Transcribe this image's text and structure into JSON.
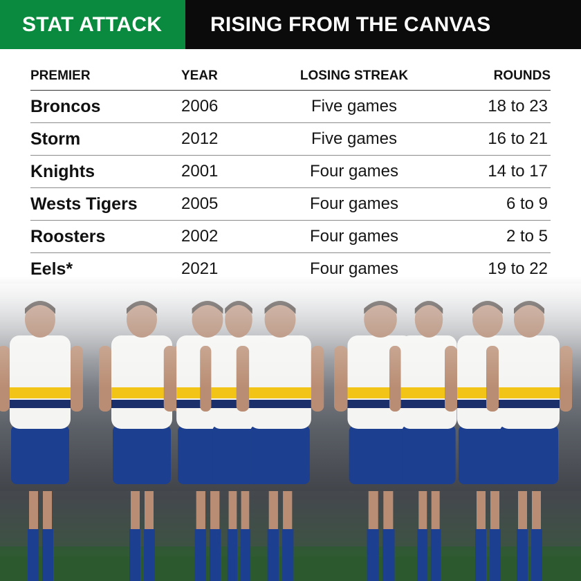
{
  "banner": {
    "left_label": "STAT ATTACK",
    "right_title": "RISING FROM THE CANVAS"
  },
  "table": {
    "headers": [
      "PREMIER",
      "YEAR",
      "LOSING STREAK",
      "ROUNDS"
    ],
    "rows": [
      {
        "premier": "Broncos",
        "year": "2006",
        "streak": "Five games",
        "rounds": "18 to 23"
      },
      {
        "premier": "Storm",
        "year": "2012",
        "streak": "Five games",
        "rounds": "16 to 21"
      },
      {
        "premier": "Knights",
        "year": "2001",
        "streak": "Four games",
        "rounds": "14 to 17"
      },
      {
        "premier": "Wests Tigers",
        "year": "2005",
        "streak": "Four games",
        "rounds": "6 to 9"
      },
      {
        "premier": "Roosters",
        "year": "2002",
        "streak": "Four games",
        "rounds": "2 to 5"
      },
      {
        "premier": "Eels*",
        "year": "2021",
        "streak": "Four games",
        "rounds": "19 to 22"
      }
    ]
  },
  "photo": {
    "jersey_colors": {
      "primary": "#f4f4f2",
      "accent": "#f2c418",
      "shorts": "#1d3f8f",
      "stripe": "#1b2f6a"
    },
    "pitch_color": "#2c5a2e"
  }
}
